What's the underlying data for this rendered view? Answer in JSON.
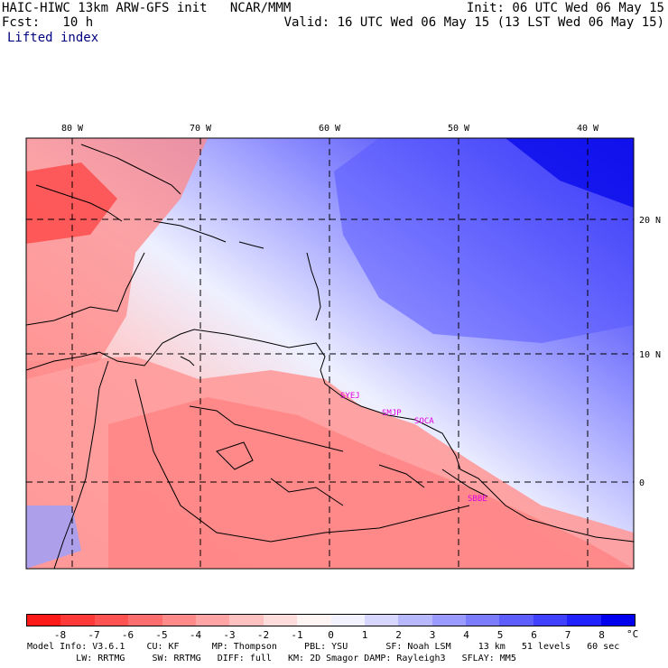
{
  "header": {
    "model_line": "HAIC-HIWC 13km ARW-GFS init   NCAR/MMM",
    "fcst_line": "Fcst:   10 h",
    "field_name": "Lifted index",
    "init_line": "Init: 06 UTC Wed 06 May 15",
    "valid_line": "Valid: 16 UTC Wed 06 May 15 (13 LST Wed 06 May 15)"
  },
  "map": {
    "lon_labels": [
      "80 W",
      "70 W",
      "60 W",
      "50 W",
      "40 W"
    ],
    "lat_labels": [
      "20 N",
      "10 N",
      "0"
    ],
    "station_labels": [
      "SYEJ",
      "SMJP",
      "SOCA",
      "SBBE"
    ],
    "station_color": "#e000e0"
  },
  "colorbar": {
    "tick_labels": [
      "-8",
      "-7",
      "-6",
      "-5",
      "-4",
      "-3",
      "-2",
      "-1",
      "0",
      "1",
      "2",
      "3",
      "4",
      "5",
      "6",
      "7",
      "8"
    ],
    "unit": "°C",
    "colors": [
      "#ff1a1a",
      "#ff3838",
      "#ff5353",
      "#ff6e6e",
      "#ff8a8a",
      "#ffa5a5",
      "#ffc0c0",
      "#ffdcdc",
      "#fff4f4",
      "#f2f2ff",
      "#d6d6ff",
      "#b8b8ff",
      "#9a9aff",
      "#7c7cff",
      "#5e5eff",
      "#4040ff",
      "#2222ff",
      "#0000ee"
    ]
  },
  "footer": {
    "line1": "Model Info: V3.6.1    CU: KF      MP: Thompson     PBL: YSU       SF: Noah LSM     13 km   51 levels   60 sec",
    "line2": "         LW: RRTMG     SW: RRTMG   DIFF: full   KM: 2D Smagor DAMP: Rayleigh3   SFLAY: MM5"
  }
}
